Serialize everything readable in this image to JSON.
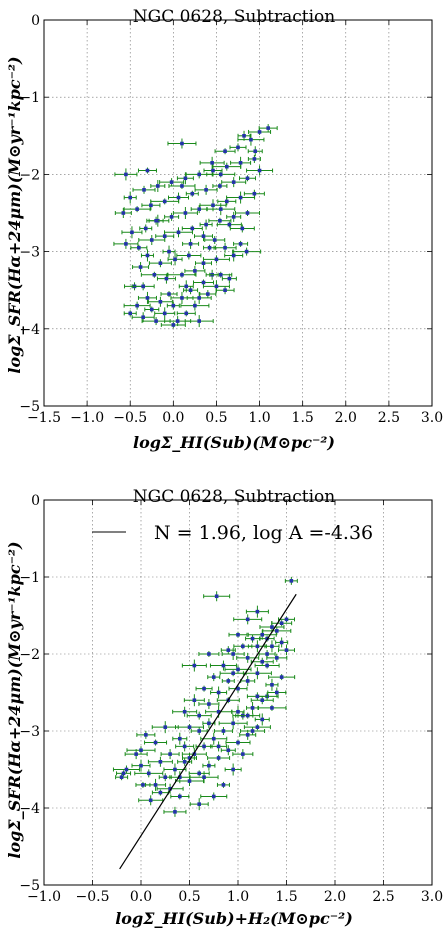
{
  "chart_data": [
    {
      "type": "scatter",
      "title": "NGC 0628, Subtraction",
      "xlabel": "logΣ_HI(Sub)(M⊙pc⁻²)",
      "ylabel": "logΣ_SFR(Hα+24μm)(M⊙yr⁻¹kpc⁻²)",
      "xlim": [
        -1.5,
        3.0
      ],
      "ylim": [
        -5,
        0
      ],
      "xticks": [
        "−1.5",
        "−1.0",
        "−0.5",
        "0.0",
        "0.5",
        "1.0",
        "1.5",
        "2.0",
        "2.5",
        "3.0"
      ],
      "yticks": [
        "0",
        "−1",
        "−2",
        "−3",
        "−4",
        "−5"
      ],
      "grid": true,
      "colors": {
        "error_bar": "#1a8a1a",
        "marker": "#2233aa"
      },
      "series": [
        {
          "points": [
            [
              -0.5,
              -3.8
            ],
            [
              -0.42,
              -3.7
            ],
            [
              -0.35,
              -3.85
            ],
            [
              -0.3,
              -3.6
            ],
            [
              -0.25,
              -3.75
            ],
            [
              -0.2,
              -3.9
            ],
            [
              -0.15,
              -3.65
            ],
            [
              -0.1,
              -3.8
            ],
            [
              -0.05,
              -3.55
            ],
            [
              0.0,
              -3.7
            ],
            [
              0.05,
              -3.9
            ],
            [
              0.1,
              -3.6
            ],
            [
              0.15,
              -3.8
            ],
            [
              0.2,
              -3.5
            ],
            [
              0.25,
              -3.7
            ],
            [
              0.3,
              -3.6
            ],
            [
              0.35,
              -3.4
            ],
            [
              0.4,
              -3.55
            ],
            [
              0.45,
              -3.3
            ],
            [
              0.5,
              -3.45
            ],
            [
              0.55,
              -3.3
            ],
            [
              0.6,
              -3.5
            ],
            [
              0.65,
              -3.35
            ],
            [
              0.3,
              -3.9
            ],
            [
              0.0,
              -3.95
            ],
            [
              -0.45,
              -3.45
            ],
            [
              -0.38,
              -3.2
            ],
            [
              -0.3,
              -3.05
            ],
            [
              -0.22,
              -3.3
            ],
            [
              -0.15,
              -3.15
            ],
            [
              -0.08,
              -3.35
            ],
            [
              0.02,
              -3.1
            ],
            [
              0.1,
              -3.3
            ],
            [
              0.18,
              -3.05
            ],
            [
              0.25,
              -3.25
            ],
            [
              0.35,
              -3.15
            ],
            [
              0.42,
              -2.95
            ],
            [
              0.5,
              -3.1
            ],
            [
              0.6,
              -2.95
            ],
            [
              0.7,
              -3.05
            ],
            [
              0.78,
              -2.9
            ],
            [
              0.85,
              -3.0
            ],
            [
              -0.55,
              -2.9
            ],
            [
              -0.48,
              -2.75
            ],
            [
              -0.4,
              -2.95
            ],
            [
              -0.32,
              -2.7
            ],
            [
              -0.25,
              -2.85
            ],
            [
              -0.18,
              -2.6
            ],
            [
              -0.1,
              -2.8
            ],
            [
              -0.02,
              -2.55
            ],
            [
              0.06,
              -2.75
            ],
            [
              0.14,
              -2.5
            ],
            [
              0.22,
              -2.7
            ],
            [
              0.3,
              -2.45
            ],
            [
              0.38,
              -2.65
            ],
            [
              0.46,
              -2.4
            ],
            [
              0.54,
              -2.6
            ],
            [
              0.62,
              -2.35
            ],
            [
              0.7,
              -2.55
            ],
            [
              0.78,
              -2.3
            ],
            [
              0.86,
              -2.5
            ],
            [
              0.94,
              -2.25
            ],
            [
              -0.58,
              -2.5
            ],
            [
              -0.5,
              -2.3
            ],
            [
              -0.42,
              -2.45
            ],
            [
              -0.34,
              -2.2
            ],
            [
              -0.26,
              -2.4
            ],
            [
              -0.18,
              -2.15
            ],
            [
              -0.1,
              -2.35
            ],
            [
              -0.02,
              -2.1
            ],
            [
              0.06,
              -2.3
            ],
            [
              0.14,
              -2.05
            ],
            [
              0.22,
              -2.25
            ],
            [
              0.3,
              -2.0
            ],
            [
              0.38,
              -2.2
            ],
            [
              0.46,
              -1.95
            ],
            [
              0.54,
              -2.15
            ],
            [
              0.62,
              -1.9
            ],
            [
              0.7,
              -2.1
            ],
            [
              0.78,
              -1.85
            ],
            [
              0.86,
              -2.05
            ],
            [
              0.94,
              -1.8
            ],
            [
              1.0,
              -1.95
            ],
            [
              -0.55,
              -2.0
            ],
            [
              -0.3,
              -1.95
            ],
            [
              -0.2,
              -2.6
            ],
            [
              0.1,
              -1.6
            ],
            [
              0.45,
              -1.85
            ],
            [
              0.6,
              -1.7
            ],
            [
              0.75,
              -1.65
            ],
            [
              0.82,
              -1.5
            ],
            [
              0.9,
              -1.55
            ],
            [
              1.0,
              -1.45
            ],
            [
              1.1,
              -1.4
            ],
            [
              0.95,
              -1.7
            ],
            [
              0.55,
              -2.45
            ],
            [
              0.65,
              -2.65
            ],
            [
              0.48,
              -2.85
            ],
            [
              0.2,
              -2.9
            ],
            [
              -0.05,
              -3.0
            ],
            [
              0.1,
              -2.15
            ],
            [
              -0.35,
              -3.45
            ],
            [
              0.35,
              -2.8
            ],
            [
              0.15,
              -3.45
            ],
            [
              0.55,
              -2.0
            ],
            [
              0.8,
              -2.7
            ]
          ]
        }
      ]
    },
    {
      "type": "scatter",
      "title": "NGC 0628, Subtraction",
      "xlabel": "logΣ_HI(Sub)+H₂(M⊙pc⁻²)",
      "ylabel": "logΣ_SFR(Hα+24μm)(M⊙yr⁻¹kpc⁻²)",
      "xlim": [
        -1.0,
        3.0
      ],
      "ylim": [
        -5,
        0
      ],
      "xticks": [
        "−1.0",
        "−0.5",
        "0.0",
        "0.5",
        "1.0",
        "1.5",
        "2.0",
        "2.5",
        "3.0"
      ],
      "yticks": [
        "0",
        "−1",
        "−2",
        "−3",
        "−4",
        "−5"
      ],
      "grid": true,
      "legend": {
        "label": "N = 1.96, log A =-4.36",
        "position": "top-left"
      },
      "fit": {
        "N": 1.96,
        "logA": -4.36,
        "x_range": [
          -0.22,
          1.6
        ]
      },
      "colors": {
        "error_bar": "#1a8a1a",
        "marker": "#2233aa",
        "fit_line": "#000000"
      },
      "series": [
        {
          "points": [
            [
              -0.2,
              -3.6
            ],
            [
              -0.15,
              -3.5
            ],
            [
              -0.05,
              -3.3
            ],
            [
              0.0,
              -3.45
            ],
            [
              0.02,
              -3.7
            ],
            [
              0.08,
              -3.55
            ],
            [
              0.1,
              -3.9
            ],
            [
              0.15,
              -3.7
            ],
            [
              0.2,
              -3.8
            ],
            [
              0.25,
              -3.6
            ],
            [
              0.3,
              -3.75
            ],
            [
              0.35,
              -3.5
            ],
            [
              0.4,
              -3.85
            ],
            [
              0.45,
              -3.4
            ],
            [
              0.5,
              -3.65
            ],
            [
              0.55,
              -3.3
            ],
            [
              0.6,
              -3.55
            ],
            [
              0.65,
              -3.2
            ],
            [
              0.7,
              -3.45
            ],
            [
              0.75,
              -3.1
            ],
            [
              0.8,
              -3.35
            ],
            [
              0.85,
              -3.0
            ],
            [
              0.9,
              -3.25
            ],
            [
              0.95,
              -2.9
            ],
            [
              1.0,
              -3.15
            ],
            [
              1.05,
              -2.8
            ],
            [
              1.1,
              -3.05
            ],
            [
              1.15,
              -2.7
            ],
            [
              1.2,
              -2.95
            ],
            [
              1.25,
              -2.6
            ],
            [
              0.3,
              -3.3
            ],
            [
              0.4,
              -3.1
            ],
            [
              0.5,
              -2.95
            ],
            [
              0.6,
              -2.8
            ],
            [
              0.7,
              -2.65
            ],
            [
              0.8,
              -2.5
            ],
            [
              0.9,
              -2.35
            ],
            [
              1.0,
              -2.2
            ],
            [
              1.1,
              -2.05
            ],
            [
              1.2,
              -1.9
            ],
            [
              1.3,
              -1.8
            ],
            [
              1.4,
              -1.7
            ],
            [
              0.45,
              -2.75
            ],
            [
              0.55,
              -2.6
            ],
            [
              0.65,
              -2.45
            ],
            [
              0.75,
              -2.3
            ],
            [
              0.85,
              -2.15
            ],
            [
              0.95,
              -2.0
            ],
            [
              1.05,
              -1.9
            ],
            [
              1.15,
              -1.8
            ],
            [
              1.25,
              -1.75
            ],
            [
              1.35,
              -1.65
            ],
            [
              1.45,
              -1.6
            ],
            [
              0.6,
              -3.0
            ],
            [
              0.7,
              -2.9
            ],
            [
              0.8,
              -2.75
            ],
            [
              0.9,
              -2.6
            ],
            [
              1.0,
              -2.45
            ],
            [
              1.1,
              -2.35
            ],
            [
              1.2,
              -2.25
            ],
            [
              1.3,
              -2.15
            ],
            [
              1.4,
              -2.05
            ],
            [
              1.5,
              -1.95
            ],
            [
              1.35,
              -2.4
            ],
            [
              1.45,
              -2.3
            ],
            [
              1.3,
              -2.55
            ],
            [
              1.4,
              -2.5
            ],
            [
              1.25,
              -2.85
            ],
            [
              1.35,
              -2.7
            ],
            [
              1.15,
              -3.0
            ],
            [
              1.05,
              -3.3
            ],
            [
              0.95,
              -3.5
            ],
            [
              0.85,
              -3.7
            ],
            [
              0.75,
              -3.85
            ],
            [
              0.35,
              -4.05
            ],
            [
              0.6,
              -3.95
            ],
            [
              -0.18,
              -3.55
            ],
            [
              0.0,
              -3.25
            ],
            [
              0.2,
              -3.4
            ],
            [
              0.4,
              -3.6
            ],
            [
              1.5,
              -1.55
            ],
            [
              1.55,
              -1.05
            ],
            [
              0.78,
              -1.25
            ],
            [
              1.2,
              -1.45
            ],
            [
              1.0,
              -1.75
            ],
            [
              0.9,
              -1.95
            ],
            [
              1.1,
              -1.55
            ],
            [
              0.55,
              -2.15
            ],
            [
              0.7,
              -2.0
            ],
            [
              1.3,
              -2.0
            ],
            [
              1.45,
              -1.85
            ],
            [
              0.25,
              -2.95
            ],
            [
              0.15,
              -3.15
            ],
            [
              0.05,
              -3.05
            ],
            [
              0.5,
              -3.35
            ],
            [
              0.65,
              -3.6
            ],
            [
              1.1,
              -2.8
            ],
            [
              1.2,
              -2.55
            ],
            [
              0.8,
              -3.2
            ],
            [
              1.0,
              -2.75
            ],
            [
              0.95,
              -2.25
            ],
            [
              1.25,
              -2.1
            ],
            [
              0.45,
              -3.2
            ],
            [
              1.35,
              -1.9
            ]
          ]
        }
      ]
    }
  ]
}
